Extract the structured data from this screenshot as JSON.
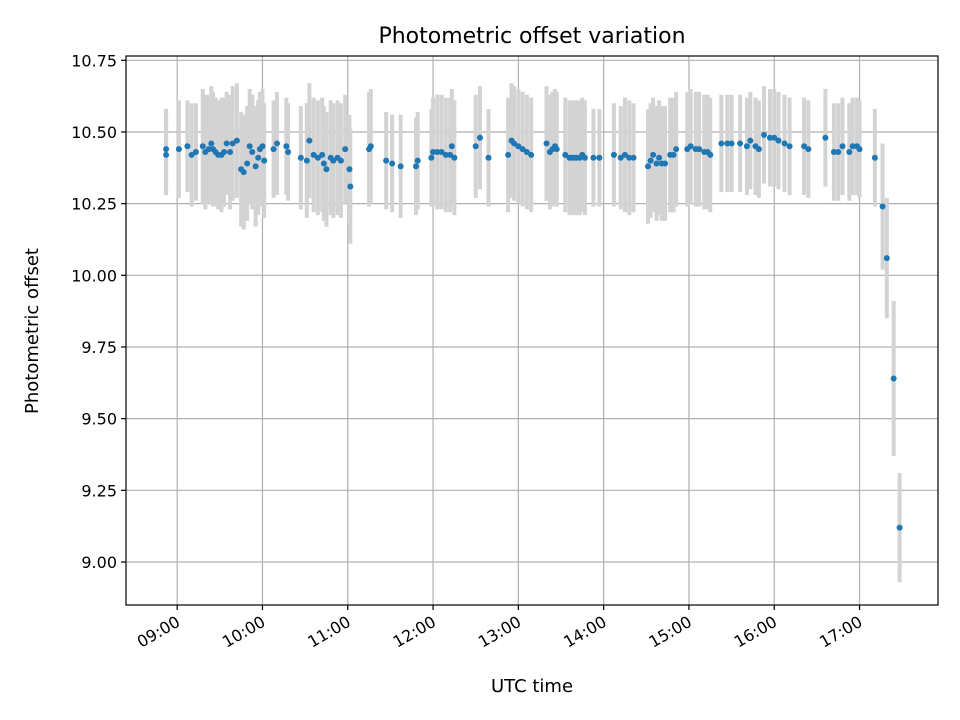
{
  "chart_data": {
    "type": "scatter",
    "title": "Photometric offset variation",
    "xlabel": "UTC time",
    "ylabel": "Photometric offset",
    "x_unit": "hours (UTC, decimal)",
    "xlim": [
      8.4,
      17.92
    ],
    "ylim": [
      8.85,
      10.765
    ],
    "grid": true,
    "x_ticks": [
      {
        "value": 9,
        "label": "09:00"
      },
      {
        "value": 10,
        "label": "10:00"
      },
      {
        "value": 11,
        "label": "11:00"
      },
      {
        "value": 12,
        "label": "12:00"
      },
      {
        "value": 13,
        "label": "13:00"
      },
      {
        "value": 14,
        "label": "14:00"
      },
      {
        "value": 15,
        "label": "15:00"
      },
      {
        "value": 16,
        "label": "16:00"
      },
      {
        "value": 17,
        "label": "17:00"
      }
    ],
    "y_ticks": [
      {
        "value": 9.0,
        "label": "9.00"
      },
      {
        "value": 9.25,
        "label": "9.25"
      },
      {
        "value": 9.5,
        "label": "9.50"
      },
      {
        "value": 9.75,
        "label": "9.75"
      },
      {
        "value": 10.0,
        "label": "10.00"
      },
      {
        "value": 10.25,
        "label": "10.25"
      },
      {
        "value": 10.5,
        "label": "10.50"
      },
      {
        "value": 10.75,
        "label": "10.75"
      }
    ],
    "colors": {
      "point": "#1f77b4",
      "errorbar": "#d3d3d3",
      "grid": "#b0b0b0"
    },
    "series": [
      {
        "points": [
          [
            8.87,
            10.44,
            0.14
          ],
          [
            8.87,
            10.42,
            0.14
          ],
          [
            9.02,
            10.44,
            0.17
          ],
          [
            9.12,
            10.45,
            0.16
          ],
          [
            9.17,
            10.42,
            0.18
          ],
          [
            9.22,
            10.43,
            0.17
          ],
          [
            9.3,
            10.45,
            0.2
          ],
          [
            9.33,
            10.43,
            0.2
          ],
          [
            9.37,
            10.44,
            0.19
          ],
          [
            9.4,
            10.46,
            0.2
          ],
          [
            9.42,
            10.44,
            0.2
          ],
          [
            9.45,
            10.43,
            0.19
          ],
          [
            9.48,
            10.42,
            0.19
          ],
          [
            9.52,
            10.42,
            0.2
          ],
          [
            9.55,
            10.43,
            0.19
          ],
          [
            9.58,
            10.46,
            0.18
          ],
          [
            9.62,
            10.43,
            0.2
          ],
          [
            9.65,
            10.46,
            0.2
          ],
          [
            9.7,
            10.47,
            0.2
          ],
          [
            9.75,
            10.37,
            0.2
          ],
          [
            9.78,
            10.36,
            0.2
          ],
          [
            9.82,
            10.39,
            0.2
          ],
          [
            9.85,
            10.45,
            0.2
          ],
          [
            9.88,
            10.43,
            0.2
          ],
          [
            9.92,
            10.38,
            0.21
          ],
          [
            9.95,
            10.41,
            0.2
          ],
          [
            9.97,
            10.44,
            0.2
          ],
          [
            10.0,
            10.45,
            0.2
          ],
          [
            10.02,
            10.4,
            0.2
          ],
          [
            10.13,
            10.44,
            0.17
          ],
          [
            10.17,
            10.46,
            0.18
          ],
          [
            10.28,
            10.45,
            0.17
          ],
          [
            10.3,
            10.43,
            0.17
          ],
          [
            10.45,
            10.41,
            0.18
          ],
          [
            10.52,
            10.4,
            0.2
          ],
          [
            10.55,
            10.47,
            0.2
          ],
          [
            10.6,
            10.42,
            0.2
          ],
          [
            10.65,
            10.41,
            0.2
          ],
          [
            10.7,
            10.42,
            0.2
          ],
          [
            10.72,
            10.39,
            0.2
          ],
          [
            10.75,
            10.37,
            0.2
          ],
          [
            10.8,
            10.41,
            0.2
          ],
          [
            10.83,
            10.4,
            0.2
          ],
          [
            10.88,
            10.41,
            0.2
          ],
          [
            10.92,
            10.4,
            0.2
          ],
          [
            10.97,
            10.44,
            0.19
          ],
          [
            11.02,
            10.37,
            0.19
          ],
          [
            11.03,
            10.31,
            0.2
          ],
          [
            11.25,
            10.44,
            0.2
          ],
          [
            11.27,
            10.45,
            0.2
          ],
          [
            11.45,
            10.4,
            0.17
          ],
          [
            11.52,
            10.39,
            0.17
          ],
          [
            11.62,
            10.38,
            0.18
          ],
          [
            11.8,
            10.38,
            0.17
          ],
          [
            11.82,
            10.4,
            0.17
          ],
          [
            11.98,
            10.41,
            0.17
          ],
          [
            12.0,
            10.43,
            0.19
          ],
          [
            12.05,
            10.43,
            0.2
          ],
          [
            12.1,
            10.43,
            0.2
          ],
          [
            12.15,
            10.42,
            0.2
          ],
          [
            12.2,
            10.42,
            0.2
          ],
          [
            12.22,
            10.45,
            0.2
          ],
          [
            12.25,
            10.41,
            0.2
          ],
          [
            12.5,
            10.45,
            0.18
          ],
          [
            12.55,
            10.48,
            0.18
          ],
          [
            12.65,
            10.41,
            0.17
          ],
          [
            12.88,
            10.42,
            0.2
          ],
          [
            12.92,
            10.47,
            0.2
          ],
          [
            12.95,
            10.46,
            0.2
          ],
          [
            13.0,
            10.45,
            0.2
          ],
          [
            13.05,
            10.44,
            0.2
          ],
          [
            13.1,
            10.43,
            0.2
          ],
          [
            13.15,
            10.42,
            0.2
          ],
          [
            13.33,
            10.46,
            0.2
          ],
          [
            13.37,
            10.43,
            0.2
          ],
          [
            13.4,
            10.44,
            0.2
          ],
          [
            13.43,
            10.45,
            0.2
          ],
          [
            13.45,
            10.44,
            0.2
          ],
          [
            13.55,
            10.42,
            0.2
          ],
          [
            13.6,
            10.41,
            0.2
          ],
          [
            13.62,
            10.41,
            0.2
          ],
          [
            13.65,
            10.41,
            0.2
          ],
          [
            13.68,
            10.41,
            0.2
          ],
          [
            13.72,
            10.41,
            0.2
          ],
          [
            13.75,
            10.42,
            0.2
          ],
          [
            13.78,
            10.41,
            0.2
          ],
          [
            13.88,
            10.41,
            0.17
          ],
          [
            13.95,
            10.41,
            0.17
          ],
          [
            14.12,
            10.42,
            0.18
          ],
          [
            14.2,
            10.41,
            0.18
          ],
          [
            14.25,
            10.42,
            0.2
          ],
          [
            14.3,
            10.41,
            0.2
          ],
          [
            14.35,
            10.41,
            0.19
          ],
          [
            14.52,
            10.38,
            0.2
          ],
          [
            14.55,
            10.4,
            0.2
          ],
          [
            14.58,
            10.42,
            0.2
          ],
          [
            14.62,
            10.39,
            0.2
          ],
          [
            14.65,
            10.41,
            0.2
          ],
          [
            14.68,
            10.39,
            0.2
          ],
          [
            14.72,
            10.39,
            0.2
          ],
          [
            14.78,
            10.42,
            0.2
          ],
          [
            14.82,
            10.42,
            0.2
          ],
          [
            14.85,
            10.44,
            0.2
          ],
          [
            14.98,
            10.44,
            0.2
          ],
          [
            15.02,
            10.45,
            0.2
          ],
          [
            15.08,
            10.44,
            0.2
          ],
          [
            15.12,
            10.44,
            0.2
          ],
          [
            15.18,
            10.43,
            0.2
          ],
          [
            15.22,
            10.43,
            0.2
          ],
          [
            15.25,
            10.42,
            0.2
          ],
          [
            15.38,
            10.46,
            0.17
          ],
          [
            15.45,
            10.46,
            0.17
          ],
          [
            15.5,
            10.46,
            0.17
          ],
          [
            15.6,
            10.46,
            0.17
          ],
          [
            15.68,
            10.45,
            0.17
          ],
          [
            15.72,
            10.47,
            0.17
          ],
          [
            15.78,
            10.45,
            0.17
          ],
          [
            15.82,
            10.44,
            0.17
          ],
          [
            15.88,
            10.49,
            0.17
          ],
          [
            15.95,
            10.48,
            0.17
          ],
          [
            16.0,
            10.48,
            0.17
          ],
          [
            16.05,
            10.47,
            0.17
          ],
          [
            16.12,
            10.46,
            0.17
          ],
          [
            16.18,
            10.45,
            0.17
          ],
          [
            16.35,
            10.45,
            0.17
          ],
          [
            16.4,
            10.44,
            0.17
          ],
          [
            16.6,
            10.48,
            0.17
          ],
          [
            16.7,
            10.43,
            0.17
          ],
          [
            16.75,
            10.43,
            0.17
          ],
          [
            16.8,
            10.45,
            0.17
          ],
          [
            16.88,
            10.43,
            0.17
          ],
          [
            16.92,
            10.45,
            0.17
          ],
          [
            16.97,
            10.45,
            0.17
          ],
          [
            17.0,
            10.44,
            0.17
          ],
          [
            17.18,
            10.41,
            0.17
          ],
          [
            17.27,
            10.24,
            0.22
          ],
          [
            17.32,
            10.06,
            0.21
          ],
          [
            17.4,
            9.64,
            0.27
          ],
          [
            17.47,
            9.12,
            0.19
          ]
        ]
      }
    ]
  }
}
